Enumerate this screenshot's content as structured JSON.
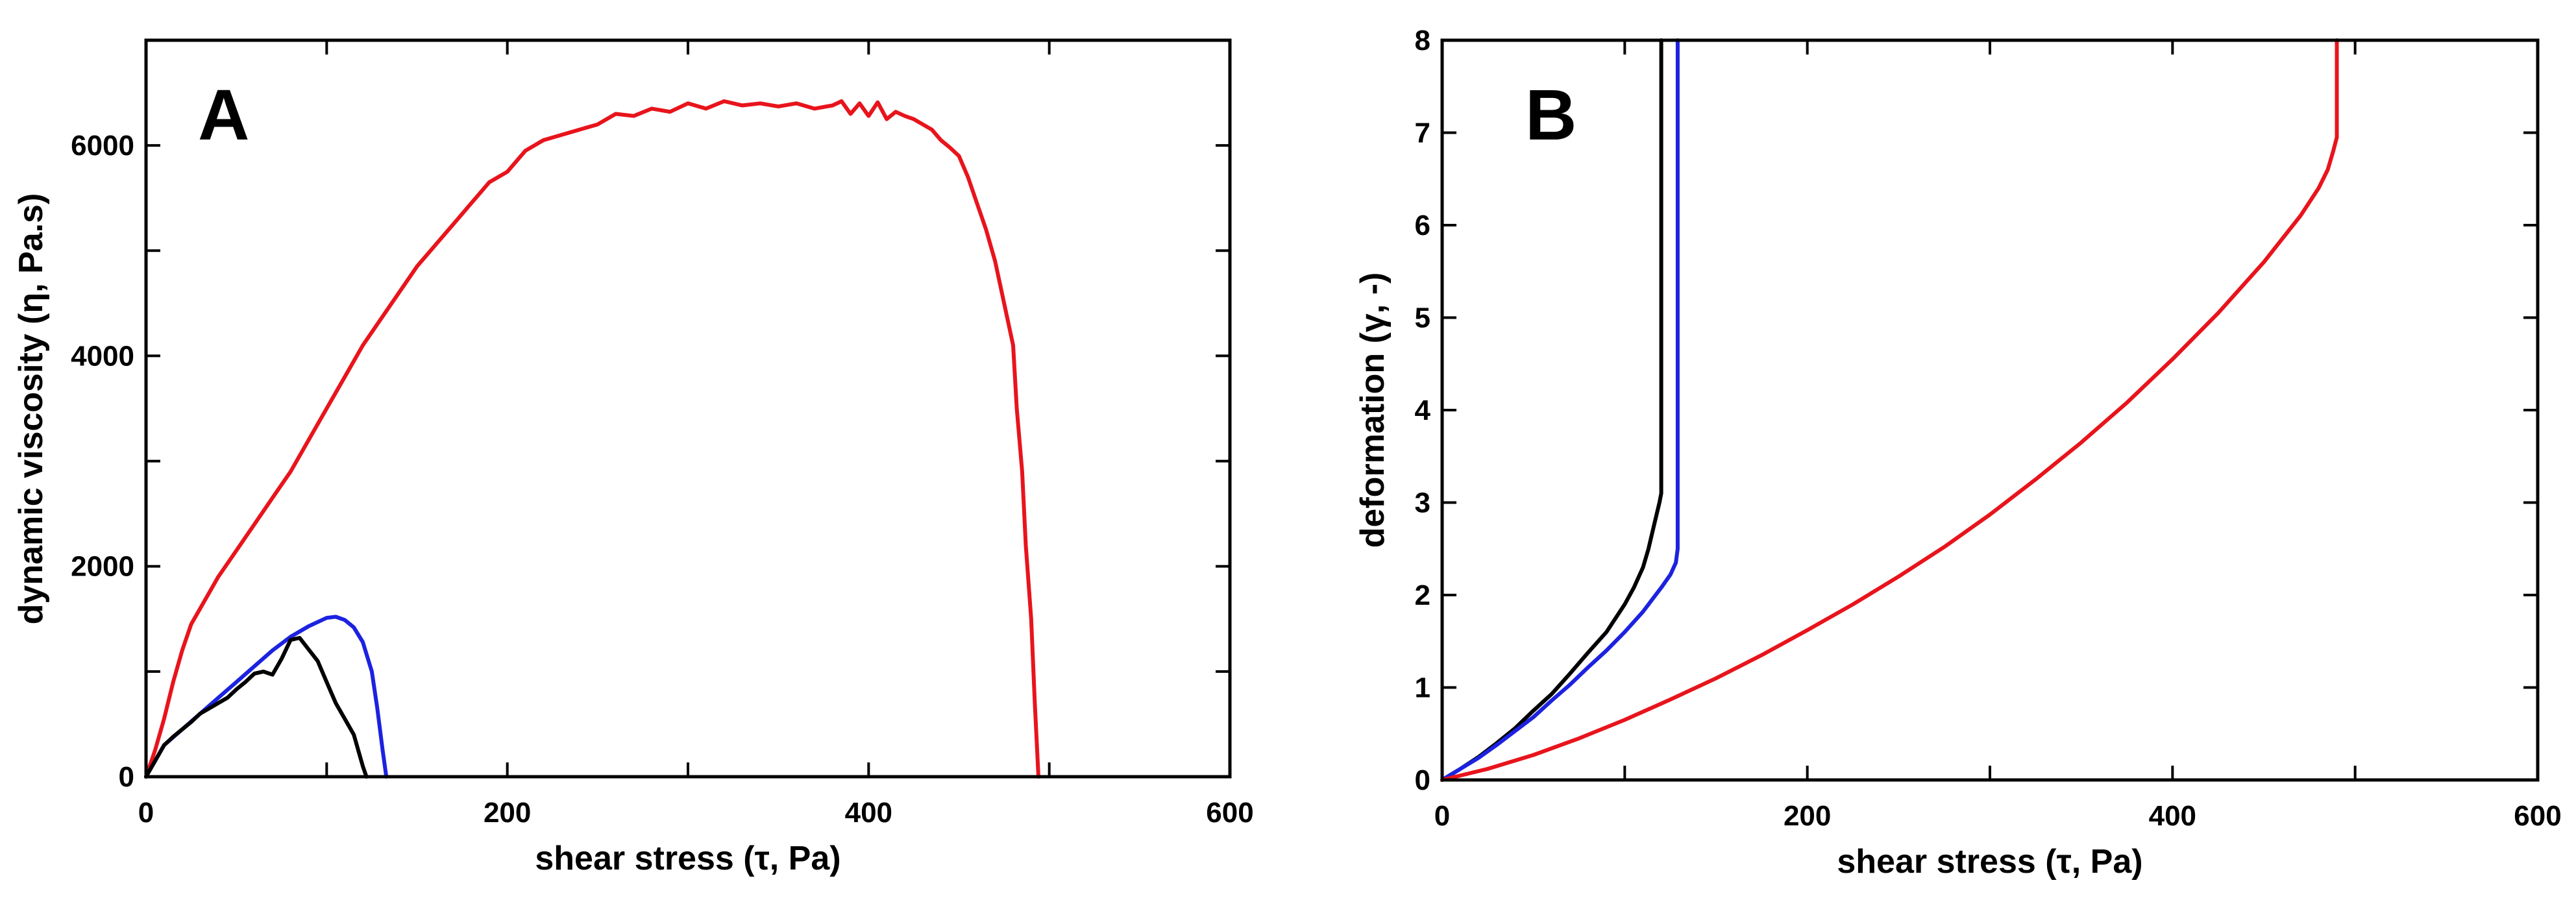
{
  "chart_data": [
    {
      "type": "line",
      "panel_label": "A",
      "xlabel": "shear stress (τ, Pa)",
      "ylabel": "dynamic viscosity (η, Pa.s)",
      "xlim": [
        0,
        600
      ],
      "ylim": [
        0,
        7000
      ],
      "xticks": [
        0,
        200,
        400,
        600
      ],
      "yticks": [
        0,
        2000,
        4000,
        6000
      ],
      "minor_xticks": [
        100,
        300,
        500
      ],
      "minor_yticks": [
        1000,
        3000,
        5000
      ],
      "grid": false,
      "series": [
        {
          "name": "red",
          "color": "#e8141c",
          "x": [
            0,
            5,
            10,
            15,
            20,
            25,
            30,
            40,
            50,
            60,
            70,
            80,
            90,
            100,
            110,
            120,
            130,
            140,
            150,
            160,
            170,
            180,
            190,
            200,
            210,
            220,
            230,
            240,
            250,
            260,
            270,
            280,
            290,
            300,
            310,
            320,
            330,
            340,
            350,
            360,
            370,
            380,
            385,
            390,
            395,
            400,
            405,
            410,
            415,
            420,
            425,
            430,
            435,
            440,
            445,
            450,
            455,
            460,
            465,
            470,
            475,
            480,
            482,
            485,
            487,
            490,
            492,
            494
          ],
          "y": [
            0,
            250,
            550,
            900,
            1200,
            1450,
            1600,
            1900,
            2150,
            2400,
            2650,
            2900,
            3200,
            3500,
            3800,
            4100,
            4350,
            4600,
            4850,
            5050,
            5250,
            5450,
            5650,
            5750,
            5950,
            6050,
            6100,
            6150,
            6200,
            6300,
            6280,
            6350,
            6320,
            6400,
            6350,
            6420,
            6380,
            6400,
            6370,
            6400,
            6350,
            6380,
            6420,
            6300,
            6400,
            6280,
            6410,
            6250,
            6320,
            6280,
            6250,
            6200,
            6150,
            6050,
            5980,
            5900,
            5700,
            5450,
            5200,
            4900,
            4500,
            4100,
            3500,
            2900,
            2200,
            1500,
            700,
            0
          ]
        },
        {
          "name": "blue",
          "color": "#1c22e0",
          "x": [
            0,
            5,
            10,
            20,
            30,
            40,
            50,
            60,
            70,
            80,
            90,
            100,
            105,
            110,
            115,
            120,
            125,
            128,
            131,
            133
          ],
          "y": [
            0,
            150,
            300,
            450,
            600,
            750,
            900,
            1050,
            1200,
            1330,
            1430,
            1510,
            1520,
            1490,
            1420,
            1280,
            1000,
            650,
            250,
            0
          ]
        },
        {
          "name": "black",
          "color": "#000000",
          "x": [
            0,
            5,
            10,
            15,
            20,
            25,
            30,
            35,
            40,
            45,
            50,
            55,
            60,
            65,
            70,
            75,
            80,
            85,
            90,
            95,
            100,
            105,
            110,
            115,
            120,
            122
          ],
          "y": [
            0,
            150,
            300,
            380,
            450,
            520,
            600,
            650,
            700,
            750,
            830,
            900,
            980,
            1000,
            970,
            1120,
            1300,
            1320,
            1210,
            1100,
            900,
            700,
            550,
            400,
            100,
            0
          ]
        }
      ]
    },
    {
      "type": "line",
      "panel_label": "B",
      "xlabel": "shear stress (τ, Pa)",
      "ylabel": "deformation (γ, -)",
      "xlim": [
        0,
        600
      ],
      "ylim": [
        0,
        8
      ],
      "xticks": [
        0,
        200,
        400,
        600
      ],
      "yticks": [
        0,
        1,
        2,
        3,
        4,
        5,
        6,
        7,
        8
      ],
      "minor_xticks": [
        100,
        300,
        500
      ],
      "minor_yticks": [],
      "grid": false,
      "series": [
        {
          "name": "black",
          "color": "#000000",
          "x": [
            0,
            10,
            20,
            30,
            40,
            50,
            60,
            70,
            80,
            90,
            100,
            105,
            110,
            113,
            116,
            119,
            120,
            120,
            120
          ],
          "y": [
            0,
            0.12,
            0.25,
            0.4,
            0.56,
            0.75,
            0.93,
            1.15,
            1.38,
            1.6,
            1.9,
            2.08,
            2.3,
            2.5,
            2.75,
            3.0,
            3.1,
            5.5,
            8.0
          ]
        },
        {
          "name": "blue",
          "color": "#1c22e0",
          "x": [
            0,
            10,
            20,
            30,
            40,
            50,
            60,
            70,
            80,
            90,
            100,
            110,
            115,
            120,
            125,
            128,
            129,
            129,
            129
          ],
          "y": [
            0,
            0.12,
            0.24,
            0.38,
            0.53,
            0.68,
            0.86,
            1.03,
            1.22,
            1.4,
            1.6,
            1.82,
            1.95,
            2.08,
            2.22,
            2.35,
            2.5,
            5.5,
            8.0
          ]
        },
        {
          "name": "red",
          "color": "#e8141c",
          "x": [
            0,
            25,
            50,
            75,
            100,
            125,
            150,
            175,
            200,
            225,
            250,
            275,
            300,
            325,
            350,
            375,
            400,
            425,
            450,
            460,
            470,
            480,
            485,
            488,
            490,
            490,
            490
          ],
          "y": [
            0,
            0.12,
            0.27,
            0.45,
            0.65,
            0.87,
            1.1,
            1.35,
            1.62,
            1.9,
            2.2,
            2.52,
            2.87,
            3.25,
            3.65,
            4.08,
            4.55,
            5.05,
            5.6,
            5.85,
            6.1,
            6.4,
            6.6,
            6.8,
            6.95,
            7.5,
            8.0
          ]
        }
      ]
    }
  ]
}
